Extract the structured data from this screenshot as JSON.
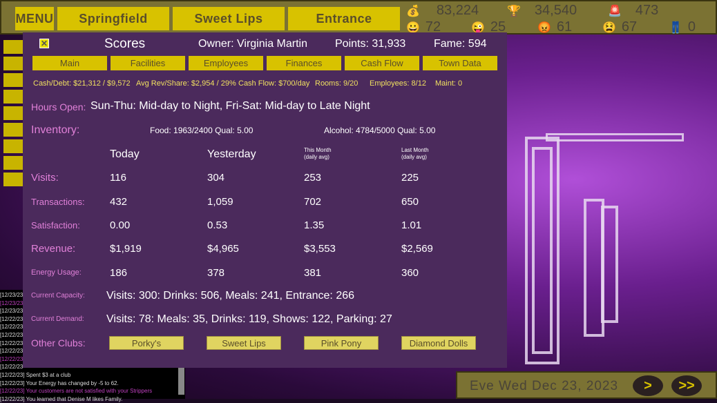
{
  "topbar": {
    "menu": "MENU",
    "town": "Springfield",
    "club": "Sweet Lips",
    "entrance": "Entrance",
    "stats": [
      {
        "icon": "money-bag-icon",
        "value": "83,224"
      },
      {
        "icon": "trophy-icon",
        "value": "34,540"
      },
      {
        "icon": "alarm-siren-icon",
        "value": "473"
      },
      {
        "icon": "happy-face-icon",
        "value": "72"
      },
      {
        "icon": "wink-face-icon",
        "value": "25"
      },
      {
        "icon": "angry-face-icon",
        "value": "61"
      },
      {
        "icon": "sad-face-icon",
        "value": "67"
      },
      {
        "icon": "pants-icon",
        "value": "0"
      }
    ]
  },
  "log": {
    "lines": [
      {
        "text": "[12/23/23",
        "color": "#dddddd"
      },
      {
        "text": "[12/23/23",
        "color": "#c040c0"
      },
      {
        "text": "[12/23/23",
        "color": "#dddddd"
      },
      {
        "text": "[12/22/23",
        "color": "#dddddd"
      },
      {
        "text": "[12/22/23",
        "color": "#dddddd"
      },
      {
        "text": "[12/22/23",
        "color": "#dddddd"
      },
      {
        "text": "[12/22/23",
        "color": "#dddddd"
      },
      {
        "text": "[12/22/23",
        "color": "#dddddd"
      },
      {
        "text": "[12/22/23",
        "color": "#c040c0"
      },
      {
        "text": "[12/22/23",
        "color": "#dddddd"
      },
      {
        "text": "[12/22/23] Spent $3 at a club",
        "color": "#dddddd"
      },
      {
        "text": "[12/22/23] Your Energy has changed by -5 to 62.",
        "color": "#dddddd"
      },
      {
        "text": "[12/22/23] Your customers are not satisfied with your Strippers",
        "color": "#c040c0"
      },
      {
        "text": "[12/22/23] You learned that Denise M likes Family.",
        "color": "#dddddd"
      }
    ]
  },
  "panel": {
    "title": "Scores",
    "owner": "Owner: Virginia Martin",
    "points": "Points: 31,933",
    "fame": "Fame: 594",
    "tabs": [
      "Main",
      "Facilities",
      "Employees",
      "Finances",
      "Cash Flow",
      "Town Data"
    ],
    "summary": [
      "Cash/Debt: $21,312 / $9,572",
      "Avg Rev/Share: $2,954 / 29%",
      "Cash Flow: $700/day",
      "Rooms: 9/20",
      "Employees: 8/12",
      "Maint: 0"
    ],
    "hours_label": "Hours Open:",
    "hours": "Sun-Thu: Mid-day to Night, Fri-Sat: Mid-day to Late Night",
    "inventory_label": "Inventory:",
    "food": "Food: 1963/2400 Qual: 5.00",
    "alcohol": "Alcohol: 4784/5000 Qual: 5.00",
    "columns": [
      "Today",
      "Yesterday",
      "This Month",
      "Last Month"
    ],
    "column_sub": "(daily avg)",
    "rows": [
      {
        "label": "Visits:",
        "values": [
          "116",
          "304",
          "253",
          "225"
        ]
      },
      {
        "label": "Transactions:",
        "values": [
          "432",
          "1,059",
          "702",
          "650"
        ]
      },
      {
        "label": "Satisfaction:",
        "values": [
          "0.00",
          "0.53",
          "1.35",
          "1.01"
        ]
      },
      {
        "label": "Revenue:",
        "values": [
          "$1,919",
          "$4,965",
          "$3,553",
          "$2,569"
        ]
      },
      {
        "label": "Energy Usage:",
        "values": [
          "186",
          "378",
          "381",
          "360"
        ]
      }
    ],
    "capacity_label": "Current Capacity:",
    "capacity": "Visits: 300: Drinks: 506, Meals: 241, Entrance: 266",
    "demand_label": "Current Demand:",
    "demand": "Visits: 78: Meals: 35, Drinks: 119, Shows: 122, Parking: 27",
    "clubs_label": "Other Clubs:",
    "clubs": [
      "Porky's",
      "Sweet Lips",
      "Pink Pony",
      "Diamond Dolls"
    ]
  },
  "datebar": {
    "date": "Eve Wed Dec 23, 2023",
    "next": ">",
    "fast": ">>"
  }
}
